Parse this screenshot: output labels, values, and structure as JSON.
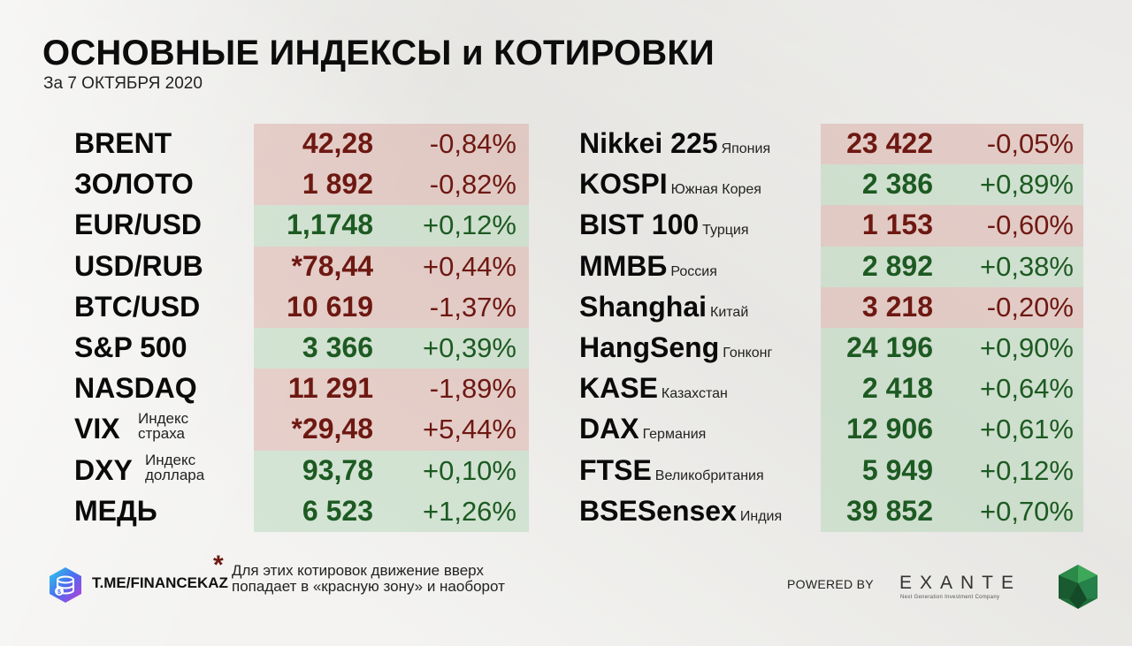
{
  "header": {
    "title": "ОСНОВНЫЕ ИНДЕКСЫ и КОТИРОВКИ",
    "subtitle": "За 7 ОКТЯБРЯ 2020"
  },
  "left": [
    {
      "name": "BRENT",
      "value": "42,28",
      "change": "-0,84%",
      "trend": "down"
    },
    {
      "name": "ЗОЛОТО",
      "value": "1 892",
      "change": "-0,82%",
      "trend": "down"
    },
    {
      "name": "EUR/USD",
      "value": "1,1748",
      "change": "+0,12%",
      "trend": "up"
    },
    {
      "name": "USD/RUB",
      "value": "*78,44",
      "change": "+0,44%",
      "trend": "down"
    },
    {
      "name": "BTC/USD",
      "value": "10 619",
      "change": "-1,37%",
      "trend": "down"
    },
    {
      "name": "S&P 500",
      "value": "3 366",
      "change": "+0,39%",
      "trend": "up"
    },
    {
      "name": "NASDAQ",
      "value": "11 291",
      "change": "-1,89%",
      "trend": "down"
    },
    {
      "name": "VIX",
      "note1": "Индекс",
      "note2": "страха",
      "value": "*29,48",
      "change": "+5,44%",
      "trend": "down"
    },
    {
      "name": "DXY",
      "note1": "Индекс",
      "note2": "доллара",
      "value": "93,78",
      "change": "+0,10%",
      "trend": "up"
    },
    {
      "name": "МЕДЬ",
      "value": "6 523",
      "change": "+1,26%",
      "trend": "up"
    }
  ],
  "right": [
    {
      "name": "Nikkei 225",
      "country": "Япония",
      "value": "23 422",
      "change": "-0,05%",
      "trend": "down"
    },
    {
      "name": "KOSPI",
      "country": "Южная Корея",
      "value": "2 386",
      "change": "+0,89%",
      "trend": "up"
    },
    {
      "name": "BIST 100",
      "country": "Турция",
      "value": "1 153",
      "change": "-0,60%",
      "trend": "down"
    },
    {
      "name": "ММВБ",
      "country": "Россия",
      "value": "2 892",
      "change": "+0,38%",
      "trend": "up"
    },
    {
      "name": "Shanghai",
      "country": "Китай",
      "value": "3 218",
      "change": "-0,20%",
      "trend": "down"
    },
    {
      "name": "HangSeng",
      "country": "Гонконг",
      "value": "24 196",
      "change": "+0,90%",
      "trend": "up"
    },
    {
      "name": "KASE",
      "country": "Казахстан",
      "value": "2 418",
      "change": "+0,64%",
      "trend": "up"
    },
    {
      "name": "DAX",
      "country": "Германия",
      "value": "12 906",
      "change": "+0,61%",
      "trend": "up"
    },
    {
      "name": "FTSE",
      "country": "Великобритания",
      "value": "5 949",
      "change": "+0,12%",
      "trend": "up"
    },
    {
      "name": "BSESensex",
      "country": "Индия",
      "value": "39 852",
      "change": "+0,70%",
      "trend": "up"
    }
  ],
  "footer": {
    "link": "T.ME/FINANCEKAZ",
    "asterisk": "*",
    "note": "Для этих котировок движение вверх попадает в «красную зону» и наоборот",
    "powered_by": "POWERED BY",
    "brand": "EXANTE",
    "brand_tagline": "Next Generation Investment Company"
  },
  "colors": {
    "down_text": "#6e1812",
    "up_text": "#1d5a22",
    "down_bg": "#e8c5bd",
    "up_bg": "#cfe2cf"
  },
  "icons": {
    "channel_logo": "coin-stack-logo-icon",
    "brand_mark": "green-crystal-icon"
  }
}
